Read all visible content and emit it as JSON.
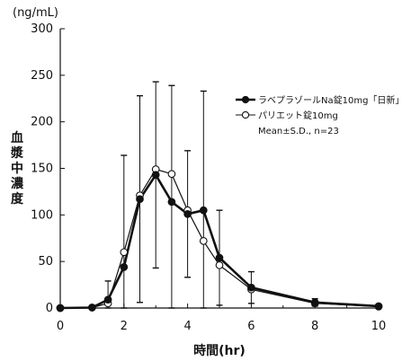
{
  "chart_data": {
    "type": "line",
    "yunit": "(ng/mL)",
    "ylabel": "血漿中濃度",
    "xlabel": "時間(hr)",
    "xlim": [
      0,
      10
    ],
    "ylim": [
      0,
      300
    ],
    "xticks": [
      0,
      2,
      4,
      6,
      8,
      10
    ],
    "yticks": [
      0,
      50,
      100,
      150,
      200,
      250,
      300
    ],
    "note": "Mean±S.D., n=23",
    "series": [
      {
        "name": "ラベプラゾールNa錠10mg「日新」",
        "marker": "filled-circle",
        "x": [
          0,
          1,
          1.5,
          2,
          2.5,
          3,
          3.5,
          4,
          4.5,
          5,
          6,
          8,
          10
        ],
        "y": [
          0,
          0.5,
          9,
          44,
          117,
          143,
          114,
          101,
          105,
          54,
          22,
          6,
          2
        ],
        "sd": [
          0,
          0,
          20,
          120,
          111,
          100,
          125,
          68,
          128,
          51,
          17,
          4,
          2
        ]
      },
      {
        "name": "パリエット錠10mg",
        "marker": "open-circle",
        "x": [
          0,
          1,
          1.5,
          2,
          2.5,
          3,
          3.5,
          4,
          4.5,
          5,
          6,
          8,
          10
        ],
        "y": [
          0,
          0.5,
          5,
          60,
          121,
          149,
          144,
          105,
          72,
          46,
          20,
          5,
          1.5
        ],
        "sd": [
          0,
          0,
          0,
          0,
          0,
          0,
          0,
          0,
          0,
          0,
          0,
          0,
          0
        ]
      }
    ]
  }
}
